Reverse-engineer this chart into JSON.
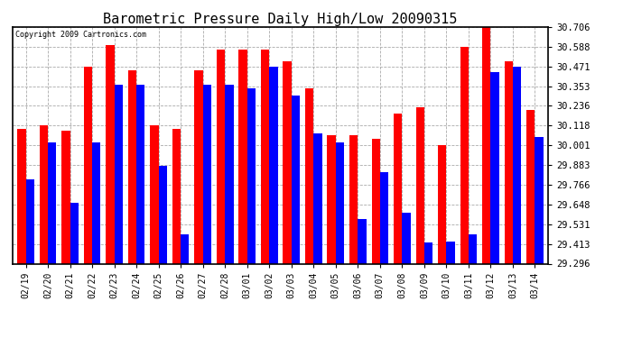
{
  "title": "Barometric Pressure Daily High/Low 20090315",
  "copyright": "Copyright 2009 Cartronics.com",
  "dates": [
    "02/19",
    "02/20",
    "02/21",
    "02/22",
    "02/23",
    "02/24",
    "02/25",
    "02/26",
    "02/27",
    "02/28",
    "03/01",
    "03/02",
    "03/03",
    "03/04",
    "03/05",
    "03/06",
    "03/07",
    "03/08",
    "03/09",
    "03/10",
    "03/11",
    "03/12",
    "03/13",
    "03/14"
  ],
  "highs": [
    30.1,
    30.12,
    30.09,
    30.47,
    30.6,
    30.45,
    30.12,
    30.1,
    30.45,
    30.57,
    30.57,
    30.57,
    30.5,
    30.34,
    30.06,
    30.06,
    30.04,
    30.19,
    30.23,
    30.0,
    30.59,
    30.71,
    30.5,
    30.21
  ],
  "lows": [
    29.8,
    30.02,
    29.66,
    30.02,
    30.36,
    30.36,
    29.88,
    29.47,
    30.36,
    30.36,
    30.34,
    30.47,
    30.3,
    30.07,
    30.02,
    29.56,
    29.84,
    29.6,
    29.42,
    29.43,
    29.47,
    30.44,
    30.47,
    30.05
  ],
  "ymin": 29.296,
  "ymax": 30.706,
  "yticks": [
    29.296,
    29.413,
    29.531,
    29.648,
    29.766,
    29.883,
    30.001,
    30.118,
    30.236,
    30.353,
    30.471,
    30.588,
    30.706
  ],
  "high_color": "#FF0000",
  "low_color": "#0000FF",
  "bg_color": "#FFFFFF",
  "plot_bg_color": "#FFFFFF",
  "grid_color": "#AAAAAA",
  "title_fontsize": 11,
  "bar_width": 0.38
}
